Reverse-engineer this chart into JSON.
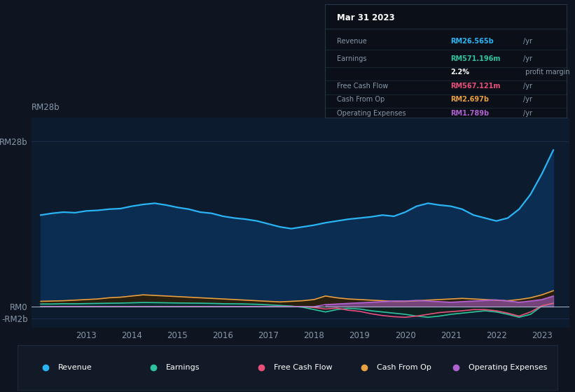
{
  "bg_color": "#0e1420",
  "plot_bg_color": "#0d1b2e",
  "grid_color": "#1e3050",
  "text_color": "#8899aa",
  "title_color": "#ffffff",
  "ylim": [
    -3500000000.0,
    32000000000.0
  ],
  "xmin": 2011.8,
  "xmax": 2023.6,
  "xticks": [
    2013,
    2014,
    2015,
    2016,
    2017,
    2018,
    2019,
    2020,
    2021,
    2022,
    2023
  ],
  "ytick_vals": [
    -2000000000.0,
    0,
    28000000000.0
  ],
  "ytick_labels": [
    "-RM2b",
    "RM0",
    "RM28b"
  ],
  "years": [
    2012.0,
    2012.25,
    2012.5,
    2012.75,
    2013.0,
    2013.25,
    2013.5,
    2013.75,
    2014.0,
    2014.25,
    2014.5,
    2014.75,
    2015.0,
    2015.25,
    2015.5,
    2015.75,
    2016.0,
    2016.25,
    2016.5,
    2016.75,
    2017.0,
    2017.25,
    2017.5,
    2017.75,
    2018.0,
    2018.25,
    2018.5,
    2018.75,
    2019.0,
    2019.25,
    2019.5,
    2019.75,
    2020.0,
    2020.25,
    2020.5,
    2020.75,
    2021.0,
    2021.25,
    2021.5,
    2021.75,
    2022.0,
    2022.25,
    2022.5,
    2022.75,
    2023.0,
    2023.25
  ],
  "revenue": [
    15500000000.0,
    15800000000.0,
    16000000000.0,
    15900000000.0,
    16200000000.0,
    16300000000.0,
    16500000000.0,
    16600000000.0,
    17000000000.0,
    17300000000.0,
    17500000000.0,
    17200000000.0,
    16800000000.0,
    16500000000.0,
    16000000000.0,
    15800000000.0,
    15300000000.0,
    15000000000.0,
    14800000000.0,
    14500000000.0,
    14000000000.0,
    13500000000.0,
    13200000000.0,
    13500000000.0,
    13800000000.0,
    14200000000.0,
    14500000000.0,
    14800000000.0,
    15000000000.0,
    15200000000.0,
    15500000000.0,
    15300000000.0,
    16000000000.0,
    17000000000.0,
    17500000000.0,
    17200000000.0,
    17000000000.0,
    16500000000.0,
    15500000000.0,
    15000000000.0,
    14500000000.0,
    15000000000.0,
    16500000000.0,
    19000000000.0,
    22500000000.0,
    26500000000.0
  ],
  "earnings": [
    450000000.0,
    450000000.0,
    500000000.0,
    480000000.0,
    520000000.0,
    550000000.0,
    580000000.0,
    600000000.0,
    650000000.0,
    700000000.0,
    680000000.0,
    650000000.0,
    620000000.0,
    600000000.0,
    580000000.0,
    550000000.0,
    500000000.0,
    480000000.0,
    450000000.0,
    400000000.0,
    300000000.0,
    200000000.0,
    100000000.0,
    -100000000.0,
    -500000000.0,
    -900000000.0,
    -500000000.0,
    -300000000.0,
    -400000000.0,
    -700000000.0,
    -900000000.0,
    -1100000000.0,
    -1300000000.0,
    -1600000000.0,
    -1800000000.0,
    -1600000000.0,
    -1300000000.0,
    -1100000000.0,
    -900000000.0,
    -700000000.0,
    -900000000.0,
    -1300000000.0,
    -1800000000.0,
    -1300000000.0,
    100000000.0,
    571000000.0
  ],
  "free_cash_flow": [
    0.0,
    0.0,
    0.0,
    0.0,
    0.0,
    0.0,
    0.0,
    0.0,
    0.0,
    0.0,
    0.0,
    0.0,
    0.0,
    0.0,
    0.0,
    0.0,
    0.0,
    0.0,
    0.0,
    0.0,
    0.0,
    0.0,
    0.0,
    0.0,
    -150000000.0,
    -400000000.0,
    -250000000.0,
    -600000000.0,
    -800000000.0,
    -1200000000.0,
    -1500000000.0,
    -1700000000.0,
    -1800000000.0,
    -1600000000.0,
    -1300000000.0,
    -1000000000.0,
    -850000000.0,
    -700000000.0,
    -500000000.0,
    -500000000.0,
    -700000000.0,
    -1100000000.0,
    -1600000000.0,
    -900000000.0,
    150000000.0,
    567000000.0
  ],
  "cash_from_op": [
    900000000.0,
    950000000.0,
    1000000000.0,
    1100000000.0,
    1200000000.0,
    1300000000.0,
    1500000000.0,
    1600000000.0,
    1800000000.0,
    2000000000.0,
    1900000000.0,
    1800000000.0,
    1700000000.0,
    1600000000.0,
    1500000000.0,
    1400000000.0,
    1300000000.0,
    1200000000.0,
    1100000000.0,
    1000000000.0,
    900000000.0,
    800000000.0,
    900000000.0,
    1000000000.0,
    1200000000.0,
    1800000000.0,
    1500000000.0,
    1300000000.0,
    1200000000.0,
    1100000000.0,
    1000000000.0,
    900000000.0,
    900000000.0,
    1000000000.0,
    1100000000.0,
    1200000000.0,
    1300000000.0,
    1400000000.0,
    1300000000.0,
    1200000000.0,
    1100000000.0,
    1000000000.0,
    1200000000.0,
    1500000000.0,
    2000000000.0,
    2697000000.0
  ],
  "operating_expenses": [
    0.0,
    0.0,
    0.0,
    0.0,
    0.0,
    0.0,
    0.0,
    0.0,
    0.0,
    0.0,
    0.0,
    0.0,
    0.0,
    0.0,
    0.0,
    0.0,
    0.0,
    0.0,
    0.0,
    0.0,
    0.0,
    0.0,
    0.0,
    0.0,
    0.0,
    350000000.0,
    450000000.0,
    550000000.0,
    650000000.0,
    750000000.0,
    850000000.0,
    950000000.0,
    950000000.0,
    1050000000.0,
    950000000.0,
    850000000.0,
    750000000.0,
    850000000.0,
    950000000.0,
    1050000000.0,
    1150000000.0,
    950000000.0,
    750000000.0,
    950000000.0,
    1200000000.0,
    1789000000.0
  ],
  "revenue_color": "#29b5f5",
  "revenue_fill": "#0c2d52",
  "earnings_color": "#2ec4a0",
  "earnings_fill_pos": "#0a3030",
  "earnings_fill_neg": "#102828",
  "free_cash_flow_color": "#e8507a",
  "cash_from_op_color": "#e8a040",
  "cash_from_op_fill": "#2a2010",
  "operating_expenses_color": "#b060d0",
  "operating_expenses_fill": "#6030a040",
  "tooltip_bg": "#0a0f18",
  "tooltip_border": "#253545",
  "legend_bg": "#111a26",
  "legend_items": [
    "Revenue",
    "Earnings",
    "Free Cash Flow",
    "Cash From Op",
    "Operating Expenses"
  ],
  "legend_colors": [
    "#29b5f5",
    "#2ec4a0",
    "#e8507a",
    "#e8a040",
    "#b060d0"
  ]
}
